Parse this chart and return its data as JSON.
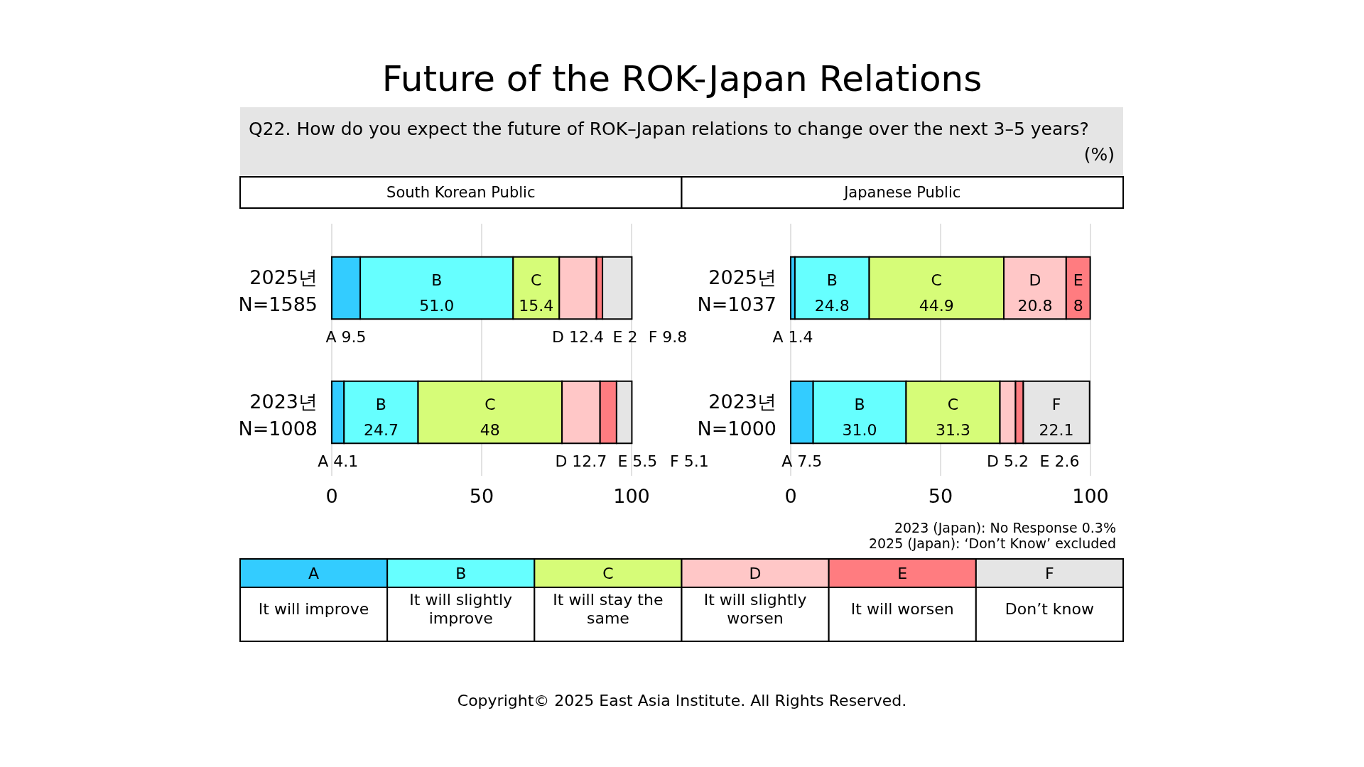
{
  "chart_data": [
    {
      "type": "bar",
      "orientation": "horizontal",
      "stacked": true,
      "title": "South Korean Public",
      "categories": [
        "2025년\nN=1585",
        "2023년\nN=1008"
      ],
      "series": [
        {
          "name": "A",
          "color": "#33ccff",
          "values": [
            9.5,
            4.1
          ],
          "value_labels": [
            "9.5",
            "4.1"
          ]
        },
        {
          "name": "B",
          "color": "#66ffff",
          "values": [
            51.0,
            24.7
          ],
          "value_labels": [
            "51.0",
            "24.7"
          ]
        },
        {
          "name": "C",
          "color": "#d6fc78",
          "values": [
            15.4,
            48
          ],
          "value_labels": [
            "15.4",
            "48"
          ]
        },
        {
          "name": "D",
          "color": "#ffc7c7",
          "values": [
            12.4,
            12.7
          ],
          "value_labels": [
            "12.4",
            "12.7"
          ]
        },
        {
          "name": "E",
          "color": "#ff7c80",
          "values": [
            2,
            5.5
          ],
          "value_labels": [
            "2",
            "5.5"
          ]
        },
        {
          "name": "F",
          "color": "#e5e5e5",
          "values": [
            9.8,
            5.1
          ],
          "value_labels": [
            "9.8",
            "5.1"
          ]
        }
      ],
      "xlim": [
        0,
        100
      ],
      "xticks": [
        0,
        50,
        100
      ],
      "grid": "x",
      "legend": "bottom",
      "annotations": [
        "Future of the ROK-Japan Relations",
        "Q22. How do you expect the future of ROK–Japan relations to change over the next 3–5 years?",
        "(%)",
        "It will improve",
        "It will slightly improve",
        "It will stay the same",
        "It will slightly worsen",
        "It will worsen",
        "Don’t know"
      ]
    },
    {
      "type": "bar",
      "orientation": "horizontal",
      "stacked": true,
      "title": "Japanese Public",
      "categories": [
        "2025년\nN=1037",
        "2023년\nN=1000"
      ],
      "series": [
        {
          "name": "A",
          "color": "#33ccff",
          "values": [
            1.4,
            7.5
          ],
          "value_labels": [
            "1.4",
            "7.5"
          ]
        },
        {
          "name": "B",
          "color": "#66ffff",
          "values": [
            24.8,
            31.0
          ],
          "value_labels": [
            "24.8",
            "31.0"
          ]
        },
        {
          "name": "C",
          "color": "#d6fc78",
          "values": [
            44.9,
            31.3
          ],
          "value_labels": [
            "44.9",
            "31.3"
          ]
        },
        {
          "name": "D",
          "color": "#ffc7c7",
          "values": [
            20.8,
            5.2
          ],
          "value_labels": [
            "20.8",
            "5.2"
          ]
        },
        {
          "name": "E",
          "color": "#ff7c80",
          "values": [
            8,
            2.6
          ],
          "value_labels": [
            "8",
            "2.6"
          ]
        },
        {
          "name": "F",
          "color": "#e5e5e5",
          "values": [
            null,
            22.1
          ],
          "value_labels": [
            null,
            "22.1"
          ]
        }
      ],
      "xlim": [
        0,
        100
      ],
      "xticks": [
        0,
        50,
        100
      ],
      "grid": "x",
      "annotations": [
        "2023 (Japan): No Response 0.3%",
        "2025 (Japan): ‘Don’t Know’ excluded",
        "Copyright© 2025 East Asia Institute. All Rights Reserved."
      ]
    }
  ]
}
